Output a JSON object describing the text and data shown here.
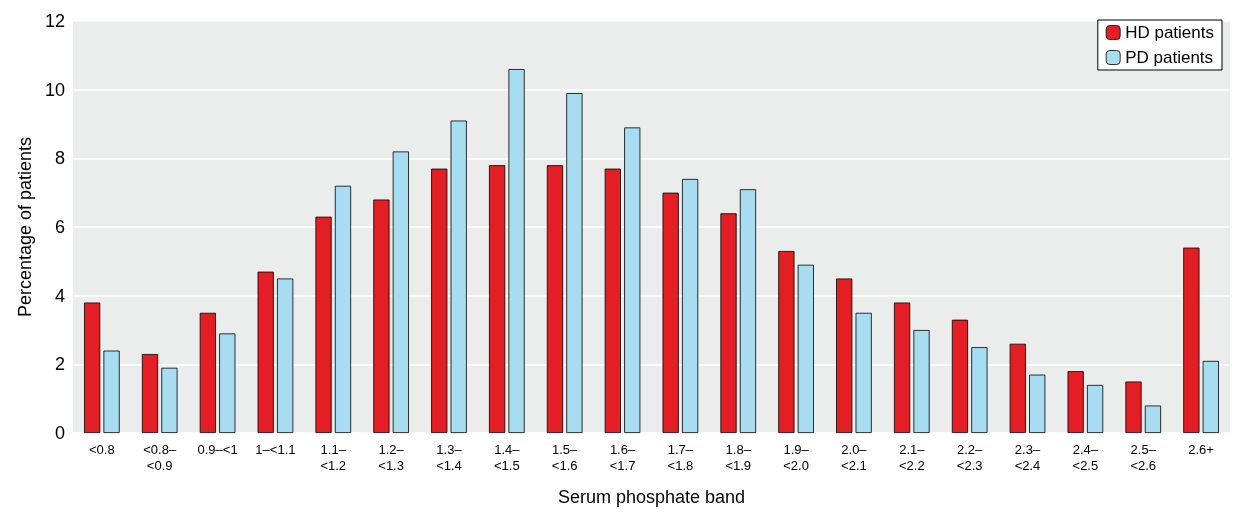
{
  "chart_data": {
    "type": "bar",
    "xlabel": "Serum phosphate band",
    "ylabel": "Percentage of patients",
    "categories": [
      "<0.8",
      "<0.8–\n<0.9",
      "0.9–<1",
      "1–<1.1",
      "1.1–\n<1.2",
      "1.2–\n<1.3",
      "1.3–\n<1.4",
      "1.4–\n<1.5",
      "1.5–\n<1.6",
      "1.6–\n<1.7",
      "1.7–\n<1.8",
      "1.8–\n<1.9",
      "1.9–\n<2.0",
      "2.0–\n<2.1",
      "2.1–\n<2.2",
      "2.2–\n<2.3",
      "2.3–\n<2.4",
      "2.4–\n<2.5",
      "2.5–\n<2.6",
      "2.6+"
    ],
    "series": [
      {
        "name": "HD patients",
        "color": "#e31e24",
        "values": [
          3.8,
          2.3,
          3.5,
          4.7,
          6.3,
          6.8,
          7.7,
          7.8,
          7.8,
          7.7,
          7.0,
          6.4,
          5.3,
          4.5,
          3.8,
          3.3,
          2.6,
          1.8,
          1.5,
          5.4
        ]
      },
      {
        "name": "PD patients",
        "color": "#a8dcf0",
        "values": [
          2.4,
          1.9,
          2.9,
          4.5,
          7.2,
          8.2,
          9.1,
          10.6,
          9.9,
          8.9,
          7.4,
          7.1,
          4.9,
          3.5,
          3.0,
          2.5,
          1.7,
          1.4,
          0.8,
          2.1
        ]
      }
    ],
    "ylim": [
      0,
      12
    ],
    "yticks": [
      0,
      2,
      4,
      6,
      8,
      10,
      12
    ],
    "grid": "y",
    "legend": "top right"
  }
}
